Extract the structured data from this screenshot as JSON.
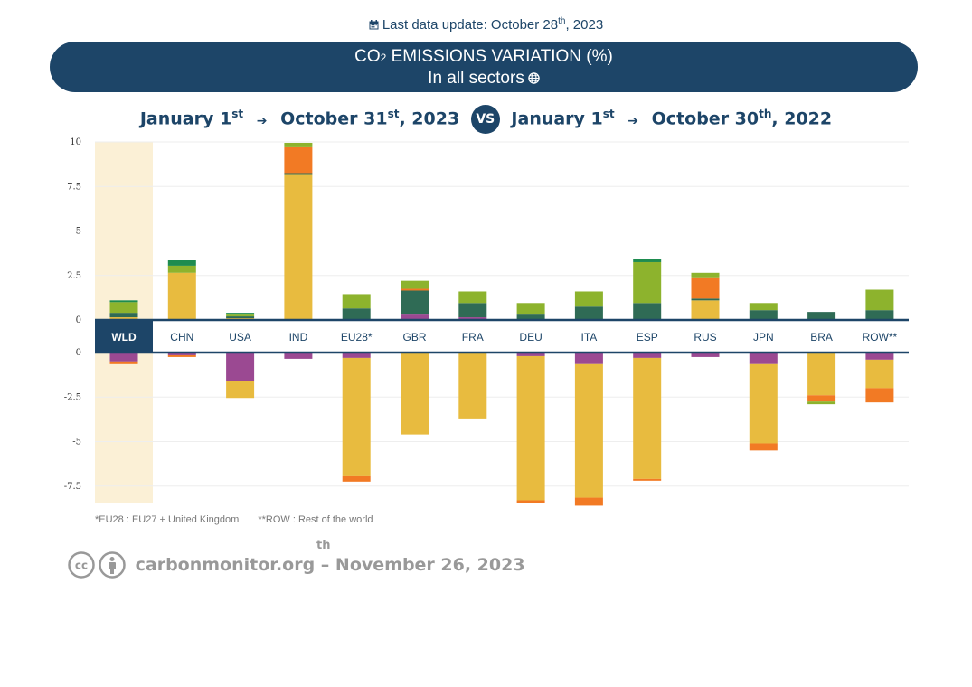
{
  "header": {
    "update_label": "Last data update: October 28",
    "update_sup": "th",
    "update_year": ", 2023"
  },
  "banner": {
    "line1_prefix": "CO",
    "line1_sub": "2",
    "line1_rest": " EMISSIONS VARIATION (%)",
    "line2": "In all sectors"
  },
  "period": {
    "a_start": "January 1",
    "a_start_sup": "st",
    "a_end": "October 31",
    "a_end_sup": "st",
    "a_end_year": ", 2023",
    "vs": "VS",
    "b_start": "January 1",
    "b_start_sup": "st",
    "b_end": "October 30",
    "b_end_sup": "th",
    "b_end_year": ", 2022"
  },
  "footnotes": {
    "eu28": "*EU28 : EU27 + United Kingdom",
    "row": "**ROW : Rest of the world"
  },
  "footer": {
    "text": "carbonmonitor.org – November 26, 2023",
    "sup": "th"
  },
  "colors": {
    "power": "#e8bb3f",
    "industry": "#8db32d",
    "ground_transport": "#2f6b55",
    "residential": "#9b4992",
    "international_aviation": "#f27a24",
    "domestic_aviation": "#1e8c4f",
    "highlight": "#fbf0d6",
    "axis": "#1d4568"
  },
  "chart_data": {
    "type": "bar",
    "stacked": true,
    "categories": [
      "WLD",
      "CHN",
      "USA",
      "IND",
      "EU28*",
      "GBR",
      "FRA",
      "DEU",
      "ITA",
      "ESP",
      "RUS",
      "JPN",
      "BRA",
      "ROW**"
    ],
    "highlight_category": "WLD",
    "positive_axis": {
      "ylim": [
        0,
        10
      ],
      "ticks": [
        "0",
        "2.5",
        "5",
        "7.5",
        "10"
      ]
    },
    "negative_axis": {
      "ylim": [
        -8.5,
        0
      ],
      "ticks": [
        "0",
        "-2.5",
        "-5",
        "-7.5"
      ]
    },
    "positive_series": [
      {
        "color_key": "residential",
        "values": [
          0,
          0,
          0,
          0,
          0,
          0.35,
          0.15,
          0,
          0,
          0,
          0,
          0,
          0,
          0
        ]
      },
      {
        "color_key": "power",
        "values": [
          0.15,
          2.65,
          0.1,
          8.15,
          0,
          0,
          0,
          0,
          0,
          0,
          1.1,
          0,
          0,
          0
        ]
      },
      {
        "color_key": "ground_transport",
        "values": [
          0.25,
          0,
          0.1,
          0.1,
          0.65,
          1.3,
          0.8,
          0.35,
          0.75,
          0.95,
          0.1,
          0.55,
          0.45,
          0.55
        ]
      },
      {
        "color_key": "international_aviation",
        "values": [
          0,
          0,
          0,
          1.45,
          0,
          0.1,
          0,
          0,
          0,
          0,
          1.2,
          0,
          0,
          0
        ]
      },
      {
        "color_key": "industry",
        "values": [
          0.6,
          0.4,
          0.15,
          0.25,
          0.8,
          0.45,
          0.65,
          0.6,
          0.85,
          2.3,
          0.25,
          0.4,
          0,
          1.15
        ]
      },
      {
        "color_key": "domestic_aviation",
        "values": [
          0.1,
          0.3,
          0.05,
          0,
          0,
          0,
          0,
          0,
          0,
          0.2,
          0,
          0,
          0,
          0
        ]
      }
    ],
    "negative_series": [
      {
        "color_key": "residential",
        "values": [
          -0.5,
          -0.15,
          -1.6,
          -0.35,
          -0.3,
          0,
          -0.05,
          -0.2,
          -0.65,
          -0.3,
          -0.25,
          -0.65,
          0,
          -0.4
        ]
      },
      {
        "color_key": "power",
        "values": [
          0,
          0,
          -0.95,
          0,
          -6.65,
          -4.6,
          -3.65,
          -8.1,
          -7.5,
          -6.8,
          0,
          -4.45,
          -2.4,
          -1.6
        ]
      },
      {
        "color_key": "international_aviation",
        "values": [
          -0.15,
          -0.1,
          0,
          0,
          -0.3,
          0,
          0,
          -0.15,
          -0.45,
          -0.1,
          0,
          -0.4,
          -0.35,
          -0.8
        ]
      },
      {
        "color_key": "industry",
        "values": [
          0,
          0,
          0,
          0,
          0,
          0,
          0,
          0,
          0,
          0,
          0,
          0,
          -0.15,
          0
        ]
      }
    ]
  }
}
